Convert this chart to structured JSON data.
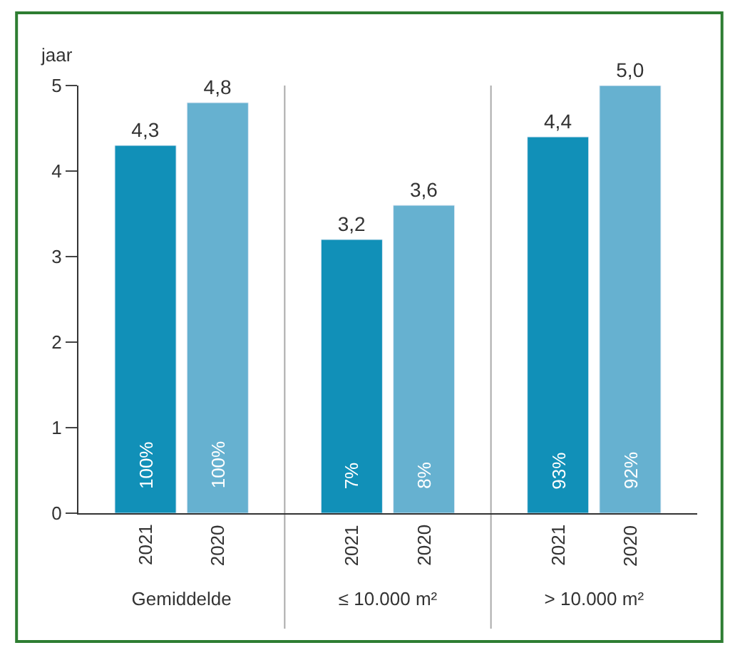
{
  "chart_data": {
    "type": "bar",
    "ylabel": "jaar",
    "categories": [
      "Gemiddelde",
      "≤ 10.000 m²",
      "> 10.000 m²"
    ],
    "series": [
      {
        "name": "2021",
        "color": "#1190b8",
        "values": [
          4.3,
          3.2,
          4.4
        ],
        "value_labels": [
          "4,3",
          "3,2",
          "4,4"
        ]
      },
      {
        "name": "2020",
        "color": "#66b1d0",
        "values": [
          4.8,
          3.6,
          5.0
        ],
        "value_labels": [
          "4,8",
          "3,6",
          "5,0"
        ]
      }
    ],
    "annotations": [
      "100%",
      "100%",
      "7%",
      "8%",
      "93%",
      "92%"
    ],
    "ylim": [
      0,
      5
    ],
    "yticks": [
      0,
      1,
      2,
      3,
      4,
      5
    ],
    "grid": "x",
    "legend": false
  }
}
